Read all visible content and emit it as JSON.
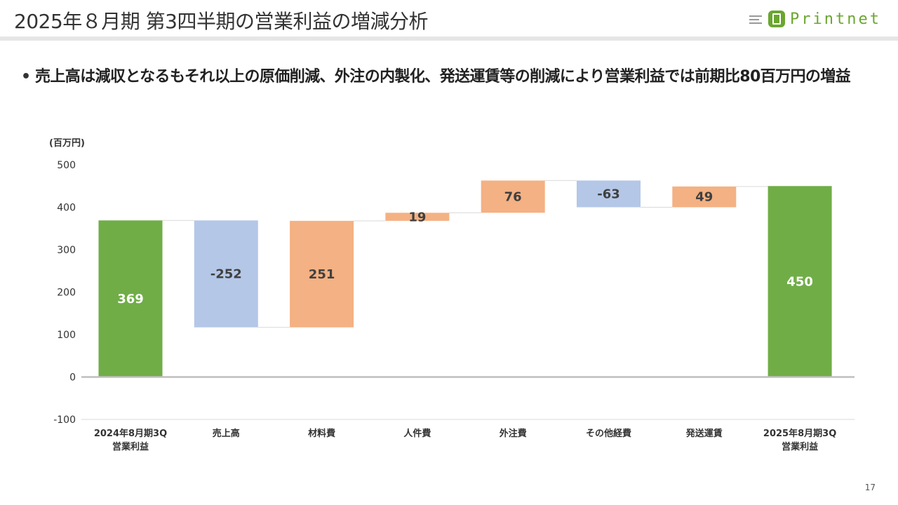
{
  "header": {
    "title": "2025年８月期 第3四半期の営業利益の増減分析",
    "logo_text": "Printnet"
  },
  "headline": {
    "bullet": "•",
    "text": "売上高は減収となるもそれ以上の原価削減、外注の内製化、発送運賃等の削減により営業利益では前期比80百万円の増益"
  },
  "colors": {
    "total": "#70ad47",
    "decrease": "#b4c7e7",
    "increase": "#f4b183",
    "connector": "#d9d9d9",
    "axis": "#bfbfbf",
    "gridline": "#d9d9d9",
    "logo_green": "#6aa630"
  },
  "chart_data": {
    "type": "bar",
    "subtype": "waterfall",
    "unit_label": "(百万円)",
    "ylim": [
      -100,
      500
    ],
    "yticks": [
      -100,
      0,
      100,
      200,
      300,
      400,
      500
    ],
    "grid": false,
    "categories": [
      [
        "2024年8月期3Q",
        "営業利益"
      ],
      [
        "売上高"
      ],
      [
        "材料費"
      ],
      [
        "人件費"
      ],
      [
        "外注費"
      ],
      [
        "その他経費"
      ],
      [
        "発送運賃"
      ],
      [
        "2025年8月期3Q",
        "営業利益"
      ]
    ],
    "bars": [
      {
        "start": 0,
        "end": 369,
        "label": "369",
        "kind": "total"
      },
      {
        "start": 369,
        "end": 117,
        "label": "-252",
        "kind": "decrease"
      },
      {
        "start": 117,
        "end": 368,
        "label": "251",
        "kind": "increase"
      },
      {
        "start": 368,
        "end": 387,
        "label": "19",
        "kind": "increase"
      },
      {
        "start": 387,
        "end": 463,
        "label": "76",
        "kind": "increase"
      },
      {
        "start": 463,
        "end": 400,
        "label": "-63",
        "kind": "decrease"
      },
      {
        "start": 400,
        "end": 449,
        "label": "49",
        "kind": "increase"
      },
      {
        "start": 0,
        "end": 450,
        "label": "450",
        "kind": "total"
      }
    ]
  },
  "footer": {
    "page_number": "17"
  }
}
